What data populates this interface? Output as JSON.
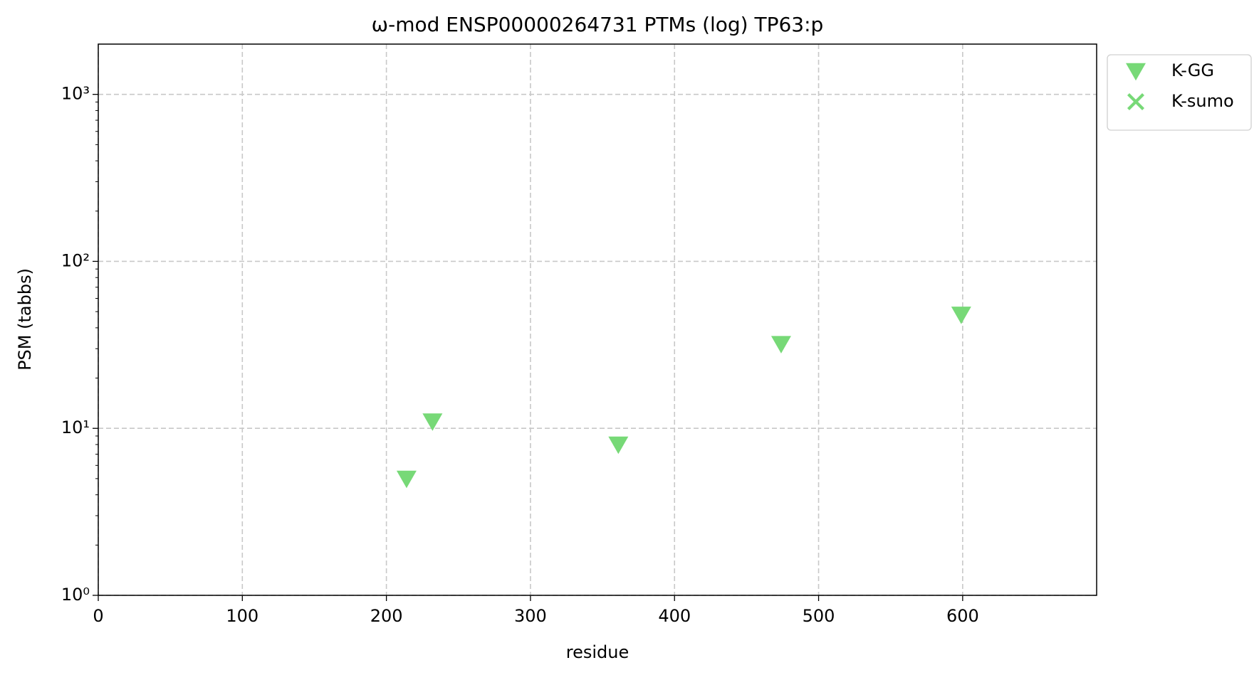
{
  "chart_data": {
    "type": "scatter",
    "title": "ω-mod ENSP00000264731 PTMs (log) TP63:p",
    "xlabel": "residue",
    "ylabel": "PSM (tabbs)",
    "xlim": [
      0,
      693
    ],
    "xticks": [
      0,
      100,
      200,
      300,
      400,
      500,
      600
    ],
    "ylim": [
      1,
      2000
    ],
    "log_y": true,
    "yticks": [
      {
        "value": 1,
        "label": "10⁰"
      },
      {
        "value": 10,
        "label": "10¹"
      },
      {
        "value": 100,
        "label": "10²"
      },
      {
        "value": 1000,
        "label": "10³"
      }
    ],
    "yminorticks": [
      2,
      3,
      4,
      5,
      6,
      7,
      8,
      9,
      20,
      30,
      40,
      50,
      60,
      70,
      80,
      90,
      200,
      300,
      400,
      500,
      600,
      700,
      800,
      900
    ],
    "grid": true,
    "legend": "outside upper right",
    "series": [
      {
        "name": "K-GG",
        "color": "#77d977",
        "marker": "triangle-down",
        "x": [
          214,
          232,
          361,
          474,
          599
        ],
        "values": [
          5,
          11,
          8,
          32,
          48
        ]
      },
      {
        "name": "K-sumo",
        "color": "#77d977",
        "marker": "x",
        "x": [],
        "values": []
      }
    ]
  }
}
